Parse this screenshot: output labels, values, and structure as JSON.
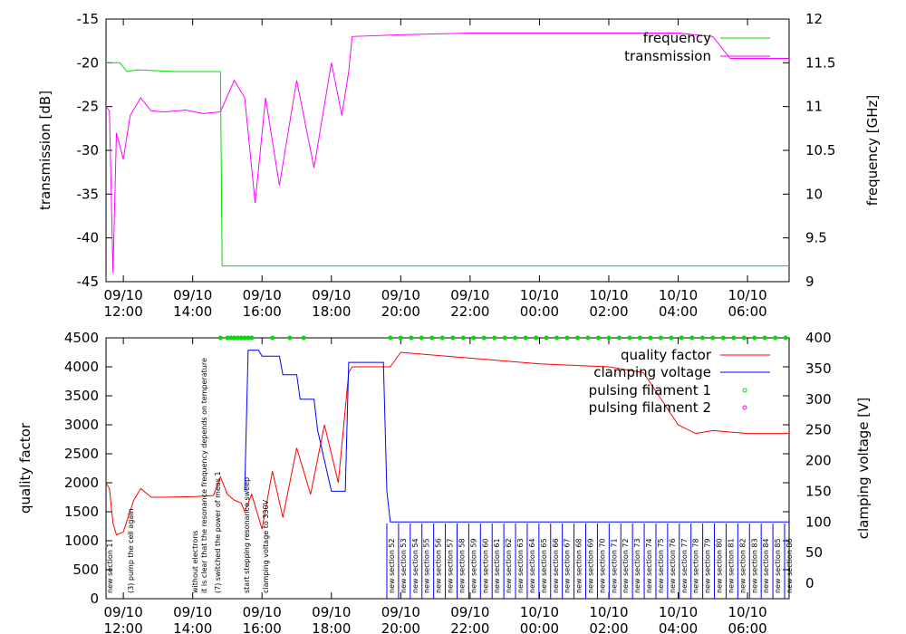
{
  "chart_data": [
    {
      "type": "line",
      "title": "",
      "xlabel": "",
      "ylabel": "transmission [dB]",
      "y2label": "frequency [GHz]",
      "xlim_hours": [
        11.5,
        31.2
      ],
      "ylim": [
        -45,
        -15
      ],
      "y2lim": [
        9,
        12
      ],
      "y_ticks": [
        "-45",
        "-40",
        "-35",
        "-30",
        "-25",
        "-20",
        "-15"
      ],
      "y2_ticks": [
        "9",
        "9.5",
        "10",
        "10.5",
        "11",
        "11.5",
        "12"
      ],
      "x_ticks": [
        {
          "date": "09/10",
          "time": "12:00"
        },
        {
          "date": "09/10",
          "time": "14:00"
        },
        {
          "date": "09/10",
          "time": "16:00"
        },
        {
          "date": "09/10",
          "time": "18:00"
        },
        {
          "date": "09/10",
          "time": "20:00"
        },
        {
          "date": "09/10",
          "time": "22:00"
        },
        {
          "date": "10/10",
          "time": "00:00"
        },
        {
          "date": "10/10",
          "time": "02:00"
        },
        {
          "date": "10/10",
          "time": "04:00"
        },
        {
          "date": "10/10",
          "time": "06:00"
        }
      ],
      "legend": [
        "frequency",
        "transmission"
      ],
      "legend_position": "top-right",
      "series": [
        {
          "name": "frequency",
          "axis": "y2",
          "color": "#00dd00",
          "x": [
            11.5,
            11.9,
            12.1,
            12.4,
            13.5,
            14.8,
            14.85,
            15.5,
            18.5,
            22,
            26,
            31.2
          ],
          "y": [
            11.5,
            11.5,
            11.4,
            11.42,
            11.4,
            11.4,
            9.18,
            9.18,
            9.18,
            9.18,
            9.18,
            9.18
          ]
        },
        {
          "name": "transmission",
          "axis": "y",
          "color": "#ff00ff",
          "x": [
            11.5,
            11.6,
            11.7,
            11.8,
            12.0,
            12.2,
            12.5,
            12.8,
            13.2,
            13.8,
            14.3,
            14.8,
            15.2,
            15.5,
            15.8,
            16.1,
            16.5,
            17.0,
            17.5,
            18.0,
            18.3,
            18.5,
            18.6,
            20.0,
            22.0,
            26.0,
            28.0,
            29.0,
            29.5,
            31.2
          ],
          "y": [
            -25,
            -25.5,
            -44,
            -28,
            -31,
            -26,
            -24,
            -25.5,
            -25.6,
            -25.4,
            -25.8,
            -25.6,
            -22,
            -24,
            -36,
            -24,
            -34,
            -22,
            -32,
            -20,
            -26,
            -21,
            -17,
            -16.8,
            -16.6,
            -16.6,
            -16.6,
            -17,
            -19.5,
            -19.5
          ]
        }
      ]
    },
    {
      "type": "line",
      "title": "",
      "xlabel": "",
      "ylabel": "quality factor",
      "y2label": "clamping voltage [V]",
      "xlim_hours": [
        11.5,
        31.2
      ],
      "ylim": [
        0,
        4500
      ],
      "y2lim": [
        -25,
        400
      ],
      "y_ticks": [
        "0",
        "500",
        "1000",
        "1500",
        "2000",
        "2500",
        "3000",
        "3500",
        "4000",
        "4500"
      ],
      "y2_ticks": [
        "0",
        "50",
        "100",
        "150",
        "200",
        "250",
        "300",
        "350",
        "400"
      ],
      "x_ticks": [
        {
          "date": "09/10",
          "time": "12:00"
        },
        {
          "date": "09/10",
          "time": "14:00"
        },
        {
          "date": "09/10",
          "time": "16:00"
        },
        {
          "date": "09/10",
          "time": "18:00"
        },
        {
          "date": "09/10",
          "time": "20:00"
        },
        {
          "date": "09/10",
          "time": "22:00"
        },
        {
          "date": "10/10",
          "time": "00:00"
        },
        {
          "date": "10/10",
          "time": "02:00"
        },
        {
          "date": "10/10",
          "time": "04:00"
        },
        {
          "date": "10/10",
          "time": "06:00"
        }
      ],
      "legend": [
        "quality factor",
        "clamping voltage",
        "pulsing filament 1",
        "pulsing filament 2"
      ],
      "legend_position": "top-right",
      "series": [
        {
          "name": "quality factor",
          "axis": "y",
          "color": "#ff0000",
          "x": [
            11.5,
            11.6,
            11.7,
            11.8,
            12.0,
            12.3,
            12.5,
            12.8,
            13.2,
            14.0,
            14.6,
            14.8,
            15.0,
            15.2,
            15.4,
            15.5,
            15.7,
            16.0,
            16.3,
            16.6,
            17.0,
            17.4,
            17.8,
            18.2,
            18.5,
            18.6,
            19.4,
            19.7,
            20.0,
            21.0,
            22.0,
            24.0,
            26.0,
            27.0,
            28.0,
            28.5,
            29.0,
            30.0,
            31.2
          ],
          "y": [
            2000,
            1900,
            1300,
            1100,
            1150,
            1700,
            1900,
            1750,
            1750,
            1760,
            1780,
            2100,
            1800,
            1700,
            1650,
            1500,
            1800,
            1200,
            2200,
            1400,
            2600,
            1800,
            3000,
            2000,
            3900,
            4000,
            4000,
            4000,
            4250,
            4200,
            4150,
            4050,
            4000,
            3900,
            3000,
            2850,
            2900,
            2850,
            2850
          ]
        },
        {
          "name": "clamping voltage",
          "axis": "y2",
          "color": "#0000ff",
          "x": [
            15.5,
            15.6,
            15.9,
            16.0,
            16.5,
            16.6,
            17.0,
            17.1,
            17.5,
            17.6,
            18.0,
            18.4,
            18.5,
            19.5,
            19.6,
            19.7,
            31.2
          ],
          "y": [
            150,
            380,
            380,
            370,
            370,
            340,
            340,
            300,
            300,
            250,
            150,
            150,
            360,
            360,
            150,
            100,
            100
          ]
        }
      ],
      "pulsing_filament_1_hours": [
        14.8,
        15.0,
        15.1,
        15.2,
        15.3,
        15.4,
        15.5,
        15.6,
        15.7,
        16.3,
        16.8,
        17.2,
        19.7,
        20.0,
        20.3,
        20.6,
        20.9,
        21.2,
        21.5,
        21.8,
        22.1,
        22.4,
        22.7,
        23.0,
        23.3,
        23.6,
        23.9,
        24.2,
        24.5,
        24.8,
        25.1,
        25.4,
        25.7,
        26.0,
        26.3,
        26.6,
        26.9,
        27.2,
        27.5,
        27.8,
        28.1,
        28.4,
        28.7,
        29.0,
        29.3,
        29.6,
        29.9,
        30.2,
        30.5,
        30.8,
        31.1
      ],
      "section_labels": [
        "new section 52",
        "new section 53",
        "new section 54",
        "new section 55",
        "new section 56",
        "new section 57",
        "new section 58",
        "new section 59",
        "new section 60",
        "new section 61",
        "new section 62",
        "new section 63",
        "new section 64",
        "new section 65",
        "new section 66",
        "new section 67",
        "new section 68",
        "new section 69",
        "new section 70",
        "new section 71",
        "new section 72",
        "new section 73",
        "new section 74",
        "new section 75",
        "new section 76",
        "new section 77",
        "new section 78",
        "new section 79",
        "new section 80",
        "new section 81",
        "new section 82",
        "new section 83",
        "new section 84",
        "new section 85",
        "new section 86"
      ],
      "annotations": [
        "(3) pump the cell again",
        "(7) switched the power of meas 1",
        "it is clear that the resonance frequency depends on temperature",
        "without electrons",
        "clamping voltage to 330V",
        "start stepping resonance sweep",
        "new section 1"
      ]
    }
  ]
}
